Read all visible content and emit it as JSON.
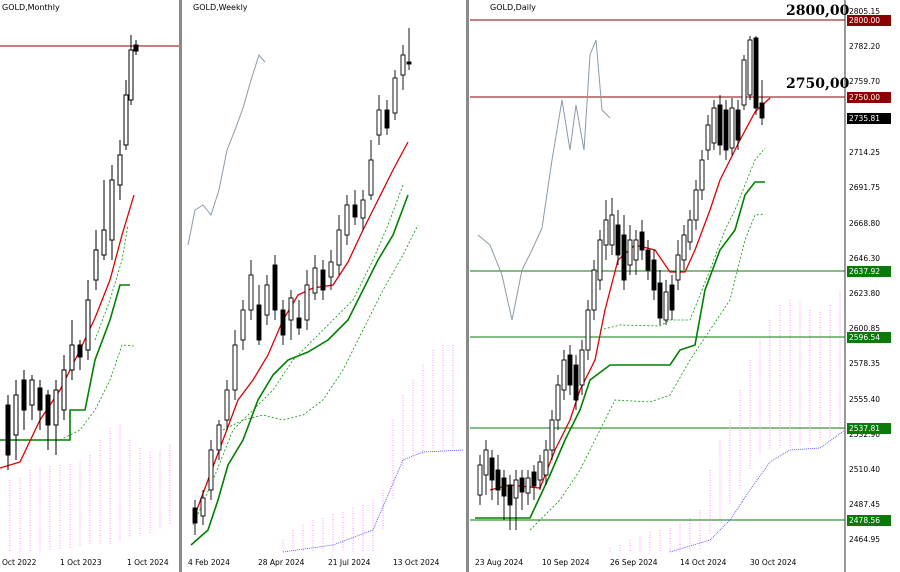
{
  "panels": {
    "monthly": {
      "symbol_title": "GOLD,Monthly",
      "time_labels": [
        "Oct 2022",
        "1 Oct 2023",
        "1 Oct 2024"
      ]
    },
    "weekly": {
      "symbol_title": "GOLD,Weekly",
      "time_labels": [
        "4 Feb 2024",
        "28 Apr 2024",
        "21 Jul 2024",
        "13 Oct 2024"
      ]
    },
    "daily": {
      "symbol_title": "GOLD,Daily",
      "time_labels": [
        "23 Aug 2024",
        "10 Sep 2024",
        "26 Sep 2024",
        "14 Oct 2024",
        "30 Oct 2024"
      ],
      "price_scale": [
        "2805.15",
        "2782.20",
        "2759.70",
        "2714.25",
        "2691.75",
        "2668.80",
        "2646.30",
        "2623.80",
        "2600.85",
        "2578.35",
        "2555.40",
        "2532.90",
        "2510.40",
        "2487.45",
        "2464.95"
      ],
      "level_tags": [
        {
          "label": "2800.00",
          "color": "#8b0000"
        },
        {
          "label": "2750.00",
          "color": "#8b0000"
        },
        {
          "label": "2735.81",
          "color": "#000000"
        },
        {
          "label": "2637.92",
          "color": "#0a7a0a"
        },
        {
          "label": "2596.54",
          "color": "#0a7a0a"
        },
        {
          "label": "2537.81",
          "color": "#0a7a0a"
        },
        {
          "label": "2478.56",
          "color": "#0a7a0a"
        }
      ],
      "annotations": [
        "2800,00",
        "2750,00"
      ]
    }
  }
}
